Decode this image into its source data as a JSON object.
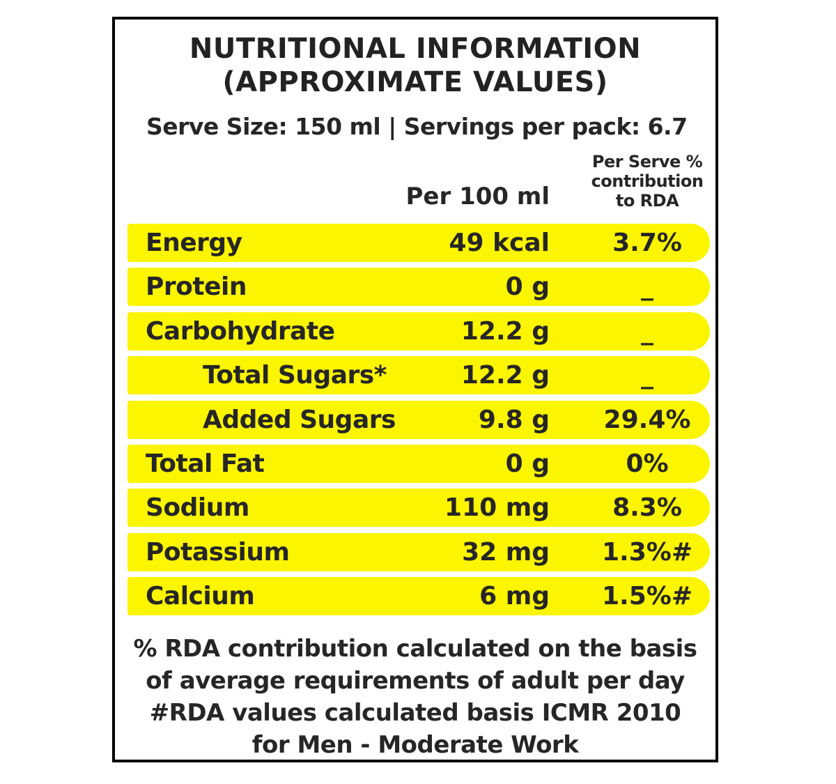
{
  "title": {
    "line1": "NUTRITIONAL INFORMATION",
    "line2": "(APPROXIMATE VALUES)"
  },
  "serve_info": "Serve Size: 150 ml | Servings per pack: 6.7",
  "columns": {
    "per_100": "Per 100 ml",
    "rda_line1": "Per Serve %",
    "rda_line2": "contribution",
    "rda_line3": "to RDA"
  },
  "nutrients": [
    {
      "name": "Energy",
      "value": "49 kcal",
      "rda": "3.7%"
    },
    {
      "name": "Protein",
      "value": "0 g",
      "rda": "_"
    },
    {
      "name": "Carbohydrate",
      "value": "12.2 g",
      "rda": "_"
    },
    {
      "name": "Total Sugars*",
      "value": "12.2 g",
      "rda": "_"
    },
    {
      "name": "Added Sugars",
      "value": "9.8 g",
      "rda": "29.4%"
    },
    {
      "name": "Total Fat",
      "value": "0 g",
      "rda": "0%"
    },
    {
      "name": "Sodium",
      "value": "110 mg",
      "rda": "8.3%"
    },
    {
      "name": "Potassium",
      "value": "32 mg",
      "rda": "1.3%#"
    },
    {
      "name": "Calcium",
      "value": "6 mg",
      "rda": "1.5%#"
    }
  ],
  "footnote": {
    "line1": "% RDA contribution calculated on the basis",
    "line2": "of average requirements of adult per day",
    "line3": "#RDA values calculated basis ICMR 2010",
    "line4": "for Men - Moderate  Work"
  },
  "colors": {
    "row_highlight": "#fcf500",
    "border": "#000000",
    "text": "#262626"
  }
}
